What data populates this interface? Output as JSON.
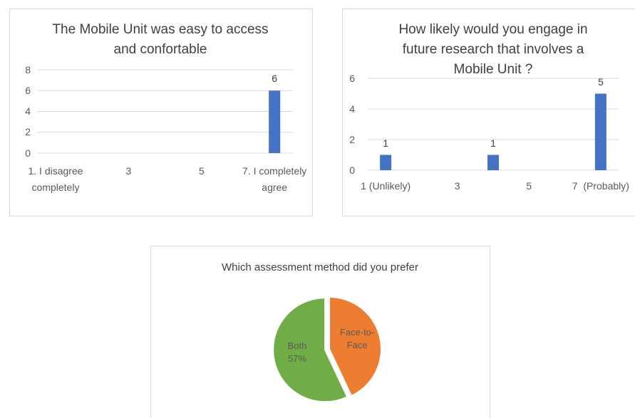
{
  "chart_data": [
    {
      "type": "bar",
      "title": "The Mobile Unit was easy to access and confortable",
      "categories": [
        "1. I disagree completely",
        null,
        "3",
        null,
        "5",
        null,
        "7. I completely agree"
      ],
      "values": [
        null,
        null,
        null,
        null,
        null,
        null,
        6
      ],
      "color": "#4472c4",
      "ylim": [
        0,
        8
      ],
      "yticks": [
        0,
        2,
        4,
        6,
        8
      ],
      "grid": true
    },
    {
      "type": "bar",
      "title": "How likely would you engage in future research that involves a Mobile Unit ?",
      "categories": [
        "1 (Unlikely)",
        null,
        "3",
        null,
        "5",
        null,
        "7  (Probably)"
      ],
      "values": [
        1,
        null,
        null,
        1,
        null,
        null,
        5
      ],
      "color": "#4472c4",
      "ylim": [
        0,
        6
      ],
      "yticks": [
        0,
        2,
        4,
        6
      ],
      "grid": true
    },
    {
      "type": "pie",
      "title": "Which assessment method did you prefer",
      "categories": [
        "Face-to-Face",
        "Both"
      ],
      "values": [
        43,
        57
      ],
      "value_labels": [
        null,
        "57%"
      ],
      "colors": [
        "#ed7d31",
        "#70ad47"
      ]
    }
  ]
}
